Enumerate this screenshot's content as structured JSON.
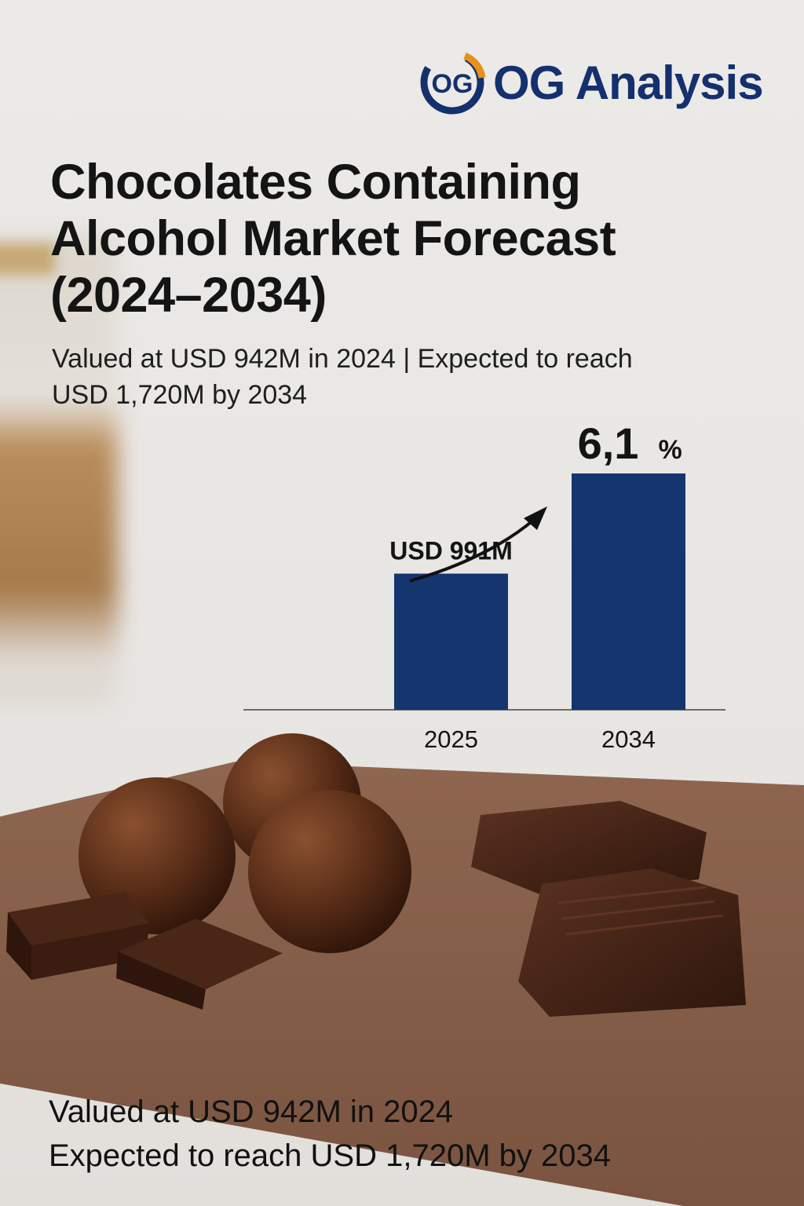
{
  "brand": {
    "logo_mark": "OG",
    "name": "OG Analysis",
    "primary_color": "#14306e",
    "accent_color": "#e8901c"
  },
  "title": "Chocolates Containing Alcohol Market Forecast (2024–2034)",
  "subtitle": {
    "line1": "Valued at USD 942M in 2024 | Expected to reach",
    "line2": "USD 1,720M by 2034"
  },
  "footer": {
    "line1": "Valued at USD 942M in 2024",
    "line2": "Expected to reach USD 1,720M by 2034"
  },
  "chart_data": {
    "type": "bar",
    "categories": [
      "2025",
      "2034"
    ],
    "values": [
      991,
      1720
    ],
    "data_labels": [
      "USD 991M",
      ""
    ],
    "growth_label": "6,1",
    "growth_unit": "%",
    "ylim": [
      0,
      1720
    ],
    "bar_color": "#15356f",
    "grid": false,
    "annotations": [
      "upward-arrow"
    ]
  }
}
